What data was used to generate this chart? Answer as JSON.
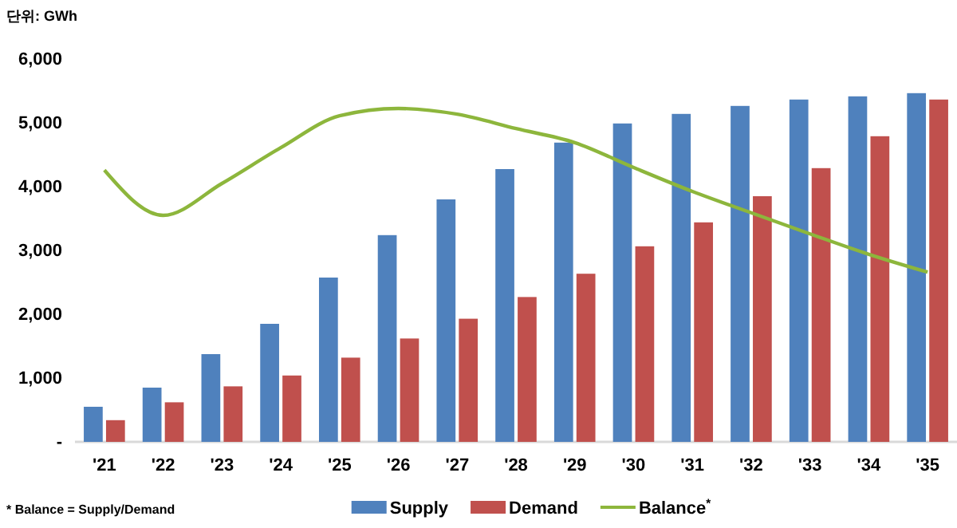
{
  "chart_data": {
    "type": "bar",
    "categories": [
      "'21",
      "'22",
      "'23",
      "'24",
      "'25",
      "'26",
      "'27",
      "'28",
      "'29",
      "'30",
      "'31",
      "'32",
      "'33",
      "'34",
      "'35"
    ],
    "series": [
      {
        "name": "Supply",
        "color": "#4f81bd",
        "values": [
          550,
          850,
          1375,
          1850,
          2575,
          3240,
          3800,
          4275,
          4690,
          4990,
          5140,
          5265,
          5365,
          5415,
          5465
        ]
      },
      {
        "name": "Demand",
        "color": "#c0504d",
        "values": [
          340,
          620,
          870,
          1040,
          1320,
          1620,
          1930,
          2270,
          2635,
          3065,
          3440,
          3850,
          4290,
          4790,
          5365
        ]
      },
      {
        "name": "Balance$^{*}$",
        "type": "line",
        "color": "#8db63c",
        "values": [
          4260,
          3550,
          4050,
          4610,
          5110,
          5225,
          5135,
          4910,
          4690,
          4300,
          3925,
          3590,
          3260,
          2940,
          2660
        ]
      }
    ],
    "ylim": [
      0,
      6000
    ],
    "yticks": [
      {
        "value": 0,
        "label": "-"
      },
      {
        "value": 1000,
        "label": "1,000"
      },
      {
        "value": 2000,
        "label": "2,000"
      },
      {
        "value": 3000,
        "label": "3,000"
      },
      {
        "value": 4000,
        "label": "4,000"
      },
      {
        "value": 5000,
        "label": "5,000"
      },
      {
        "value": 6000,
        "label": "6,000"
      }
    ],
    "legend": "bottom",
    "marker": "none",
    "annotations": [
      "단위: GWh",
      "* Balance = Supply/Demand"
    ]
  }
}
